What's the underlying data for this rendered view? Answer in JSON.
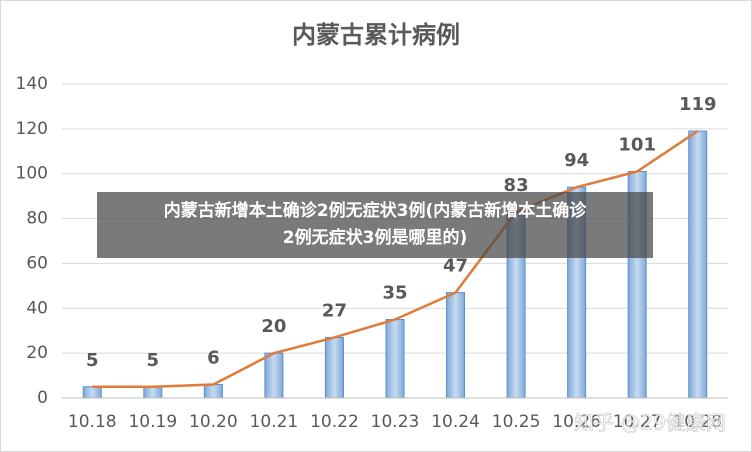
{
  "chart_data": {
    "type": "bar",
    "title": "内蒙古累计病例",
    "categories": [
      "10.18",
      "10.19",
      "10.20",
      "10.21",
      "10.22",
      "10.23",
      "10.24",
      "10.25",
      "10.26",
      "10.27",
      "10.28"
    ],
    "values": [
      5,
      5,
      6,
      20,
      27,
      35,
      47,
      83,
      94,
      101,
      119
    ],
    "color": "#9dc3e6",
    "border_color": "#5b8fc9",
    "line": true,
    "line_color": "#e07b39",
    "ylim": [
      0,
      140
    ],
    "yticks": [
      0,
      20,
      40,
      60,
      80,
      100,
      120,
      140
    ],
    "grid": true
  },
  "banner": {
    "line1": "内蒙古新增本土确诊2例无症状3例(内蒙古新增本土确诊",
    "line2": "2例无症状3例是哪里的)"
  },
  "watermark": "知乎 @29健康网"
}
